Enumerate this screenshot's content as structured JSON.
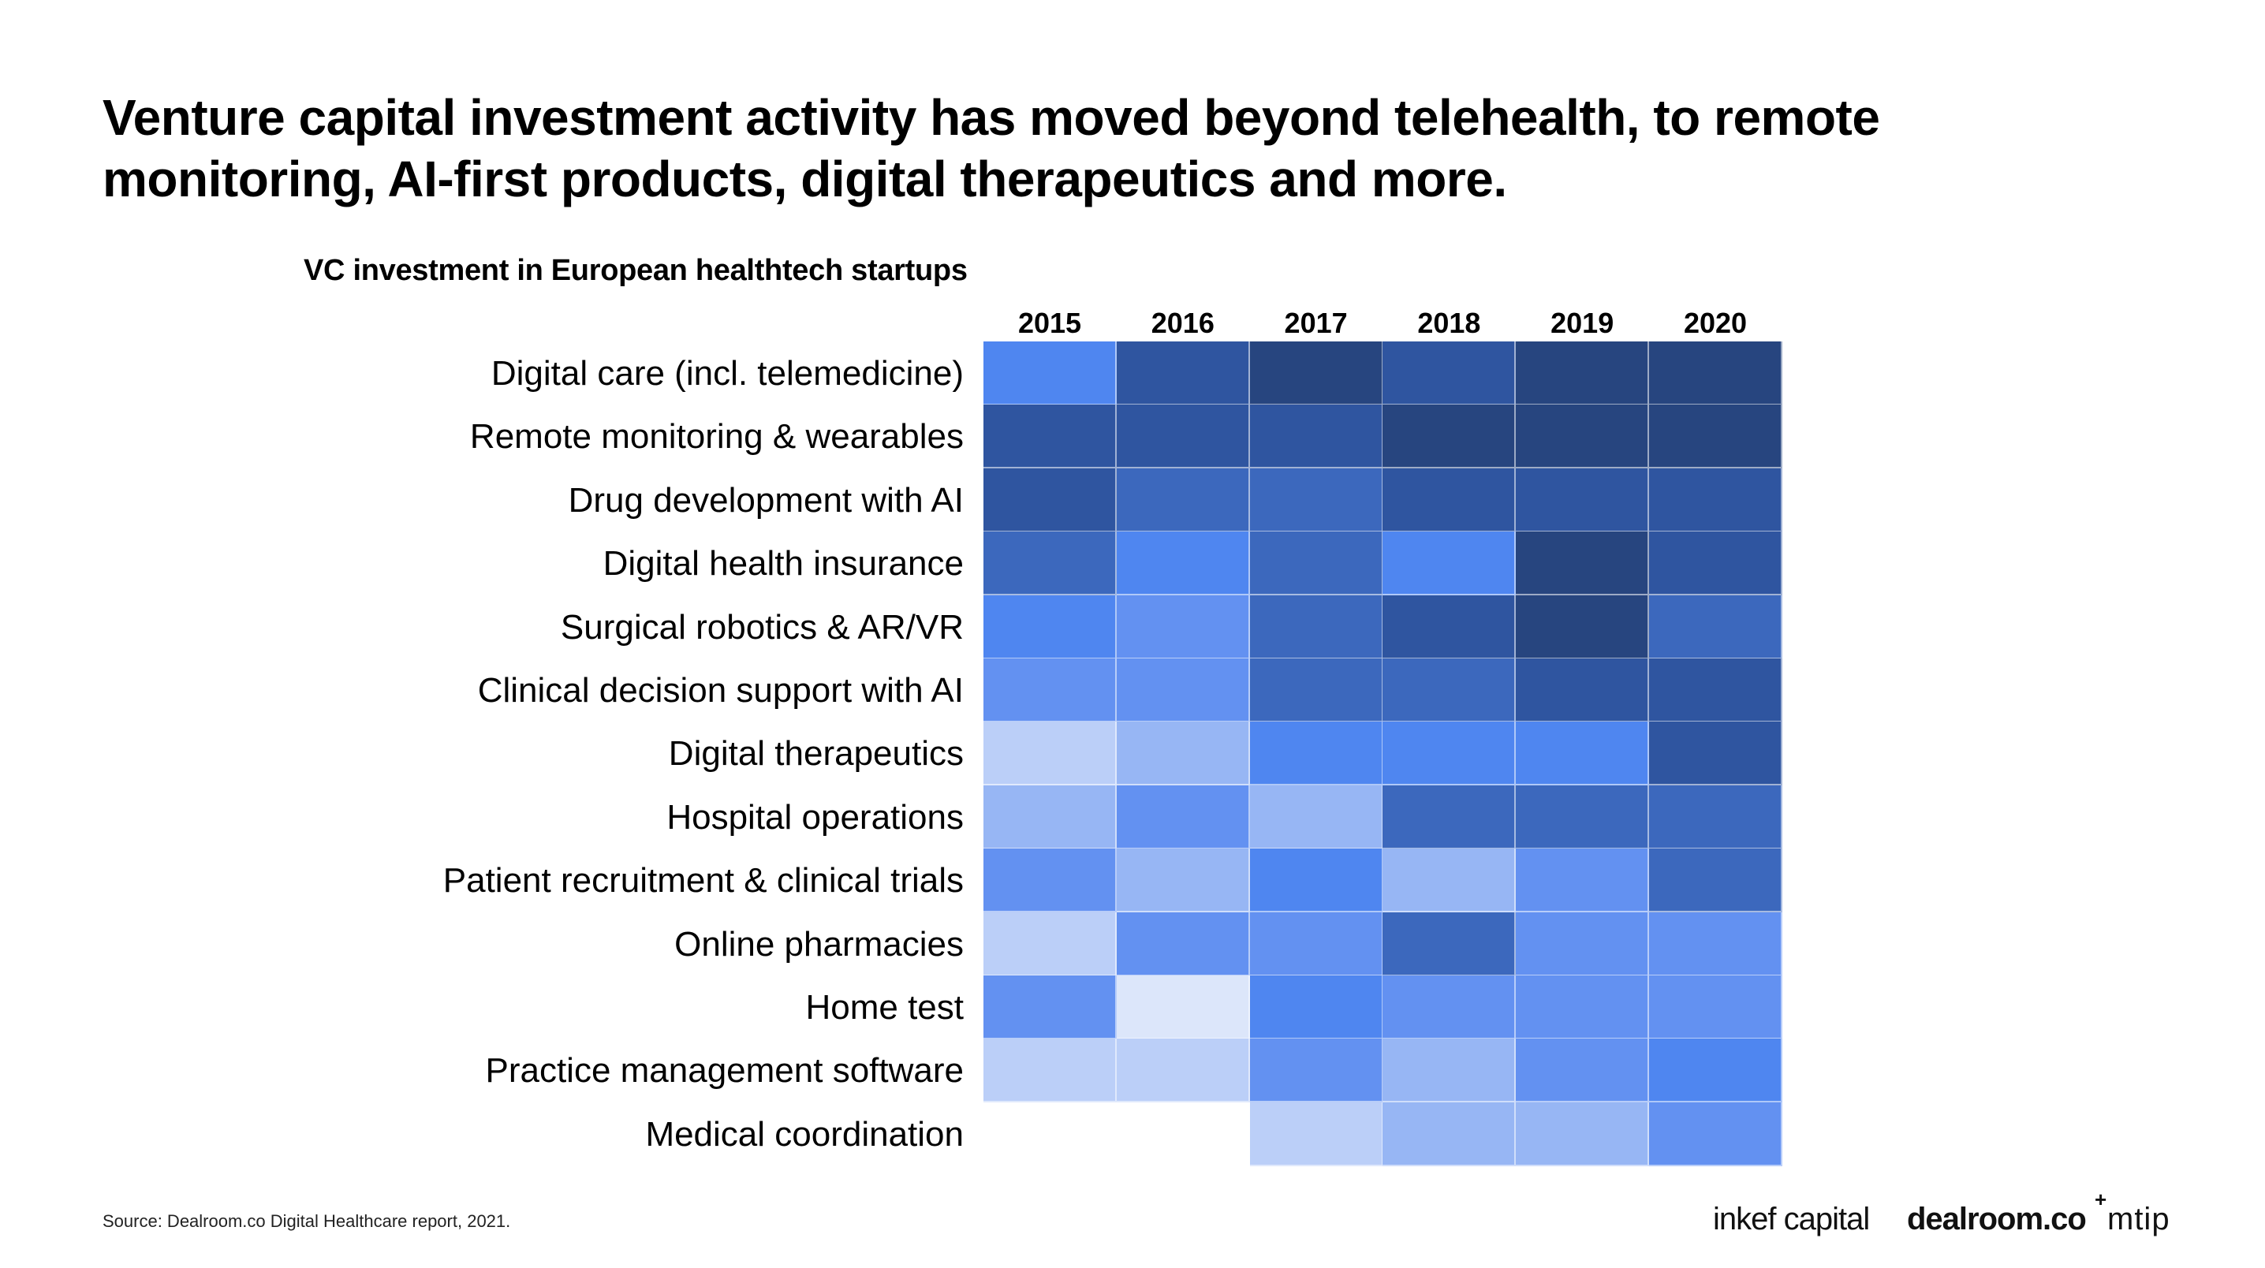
{
  "header": {
    "title_line1": "Venture capital investment activity has moved beyond telehealth, to remote",
    "title_line2": "monitoring, AI-first products, digital therapeutics and more."
  },
  "footer": {
    "source": "Source: Dealroom.co Digital Healthcare report, 2021.",
    "logos": [
      "inkef capital",
      "dealroom.co",
      "mtip"
    ]
  },
  "colors": {
    "scale": [
      "#DCE6FA",
      "#BBCFF8",
      "#97B6F4",
      "#6391F1",
      "#4F86F0",
      "#3C68BD",
      "#2F55A0",
      "#27457F"
    ]
  },
  "chart_data": {
    "type": "heatmap",
    "title": "VC investment in European healthtech startups",
    "xlabel": "",
    "ylabel": "",
    "legend": "none",
    "value_note": "relative investment intensity, 1 (lowest) to 8 (highest), read from color shade",
    "x": [
      "2015",
      "2016",
      "2017",
      "2018",
      "2019",
      "2020"
    ],
    "y": [
      "Digital care (incl. telemedicine)",
      "Remote monitoring & wearables",
      "Drug development with AI",
      "Digital health insurance",
      "Surgical robotics & AR/VR",
      "Clinical decision support with AI",
      "Digital therapeutics",
      "Hospital operations",
      "Patient recruitment & clinical trials",
      "Online pharmacies",
      "Home test",
      "Practice management software",
      "Medical coordination"
    ],
    "values": [
      [
        5,
        7,
        8,
        7,
        8,
        8
      ],
      [
        7,
        7,
        7,
        8,
        8,
        8
      ],
      [
        7,
        6,
        6,
        7,
        7,
        7
      ],
      [
        6,
        5,
        6,
        5,
        8,
        7
      ],
      [
        5,
        4,
        6,
        7,
        8,
        6
      ],
      [
        4,
        4,
        6,
        6,
        7,
        7
      ],
      [
        2,
        3,
        5,
        5,
        5,
        7
      ],
      [
        3,
        4,
        3,
        6,
        6,
        6
      ],
      [
        4,
        3,
        5,
        3,
        4,
        6
      ],
      [
        2,
        4,
        4,
        6,
        4,
        4
      ],
      [
        4,
        1,
        5,
        4,
        4,
        4
      ],
      [
        2,
        2,
        4,
        3,
        4,
        5
      ],
      [
        null,
        null,
        2,
        3,
        3,
        4
      ]
    ],
    "range": [
      1,
      8
    ]
  }
}
